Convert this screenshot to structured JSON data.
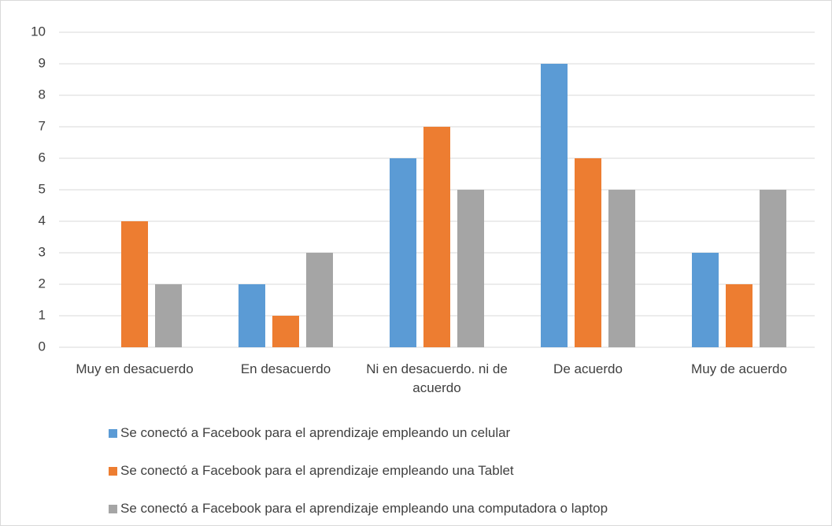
{
  "chart_data": {
    "type": "bar",
    "categories": [
      "Muy en desacuerdo",
      "En desacuerdo",
      "Ni en desacuerdo. ni de acuerdo",
      "De acuerdo",
      "Muy de acuerdo"
    ],
    "series": [
      {
        "name": "Se conectó a Facebook para el aprendizaje empleando un celular",
        "color": "#5b9bd5",
        "values": [
          0,
          2,
          6,
          9,
          3
        ]
      },
      {
        "name": "Se conectó a Facebook para el aprendizaje empleando una Tablet",
        "color": "#ed7d31",
        "values": [
          4,
          1,
          7,
          6,
          2
        ]
      },
      {
        "name": "Se conectó a Facebook para el aprendizaje empleando una computadora o laptop",
        "color": "#a5a5a5",
        "values": [
          2,
          3,
          5,
          5,
          5
        ]
      }
    ],
    "ylim": [
      0,
      10
    ],
    "yticks": [
      0,
      1,
      2,
      3,
      4,
      5,
      6,
      7,
      8,
      9,
      10
    ],
    "grid": true,
    "legend": "bottom"
  }
}
